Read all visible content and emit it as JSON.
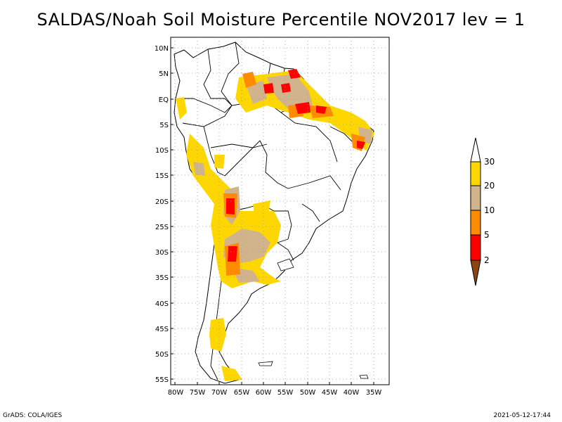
{
  "title": "SALDAS/Noah Soil Moisture Percentile NOV2017 lev = 1",
  "footer": {
    "left": "GrADS: COLA/IGES",
    "right": "2021-05-12-17:44"
  },
  "map": {
    "lon_range": [
      -81,
      -29
    ],
    "lat_range": [
      -56,
      12
    ],
    "lat_ticks": [
      "10N",
      "5N",
      "EQ",
      "5S",
      "10S",
      "15S",
      "20S",
      "25S",
      "30S",
      "35S",
      "40S",
      "45S",
      "50S",
      "55S"
    ],
    "lon_ticks": [
      "80W",
      "75W",
      "70W",
      "65W",
      "60W",
      "55W",
      "50W",
      "45W",
      "40W",
      "35W"
    ],
    "grid": "dotted"
  },
  "legend": {
    "labels": [
      "2",
      "5",
      "10",
      "20",
      "30"
    ],
    "colors": {
      "below2": "#8b4513",
      "c2_5": "#ff0000",
      "c5_10": "#ff8c00",
      "c10_20": "#d2b48c",
      "c20_30": "#ffd700",
      "above30": "#ffffff"
    }
  }
}
